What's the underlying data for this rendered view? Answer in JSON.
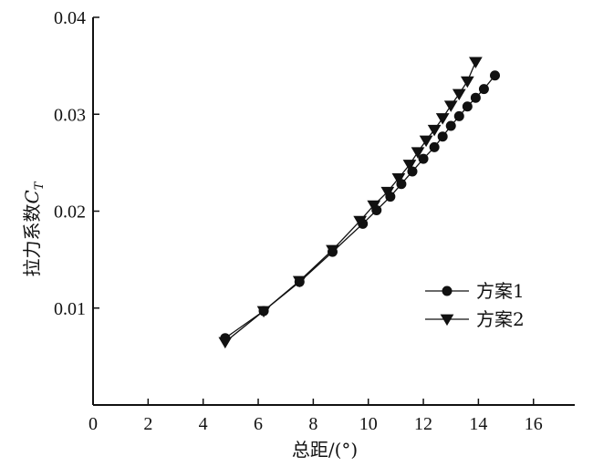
{
  "chart_data": {
    "type": "line",
    "xlabel": "总距/(°)",
    "ylabel": "拉力系数",
    "ylabel_symbol": "C",
    "ylabel_subscript": "T",
    "xlim": [
      0,
      17.5
    ],
    "ylim": [
      0,
      0.04
    ],
    "xticks": [
      0,
      2,
      4,
      6,
      8,
      10,
      12,
      14,
      16
    ],
    "yticks": [
      0.01,
      0.02,
      0.03,
      0.04
    ],
    "xtick_labels": [
      "0",
      "2",
      "4",
      "6",
      "8",
      "10",
      "12",
      "14",
      "16"
    ],
    "ytick_labels": [
      "0.01",
      "0.02",
      "0.03",
      "0.04"
    ],
    "legend_placement": "right",
    "series": [
      {
        "name": "方案1",
        "marker": "circle",
        "x": [
          4.8,
          6.2,
          7.5,
          8.7,
          9.8,
          10.3,
          10.8,
          11.2,
          11.6,
          12.0,
          12.4,
          12.7,
          13.0,
          13.3,
          13.6,
          13.9,
          14.2,
          14.6
        ],
        "y": [
          0.0069,
          0.0097,
          0.0127,
          0.0158,
          0.0187,
          0.0201,
          0.0215,
          0.0228,
          0.0241,
          0.0254,
          0.0266,
          0.0277,
          0.0288,
          0.0298,
          0.0308,
          0.0317,
          0.0326,
          0.034
        ]
      },
      {
        "name": "方案2",
        "marker": "triangle-down",
        "x": [
          4.8,
          6.2,
          7.5,
          8.7,
          9.7,
          10.2,
          10.7,
          11.1,
          11.5,
          11.8,
          12.1,
          12.4,
          12.7,
          13.0,
          13.3,
          13.6,
          13.9
        ],
        "y": [
          0.0065,
          0.0097,
          0.0128,
          0.016,
          0.019,
          0.0206,
          0.022,
          0.0234,
          0.0248,
          0.0261,
          0.0273,
          0.0284,
          0.0296,
          0.0309,
          0.0321,
          0.0334,
          0.0354
        ]
      }
    ]
  }
}
